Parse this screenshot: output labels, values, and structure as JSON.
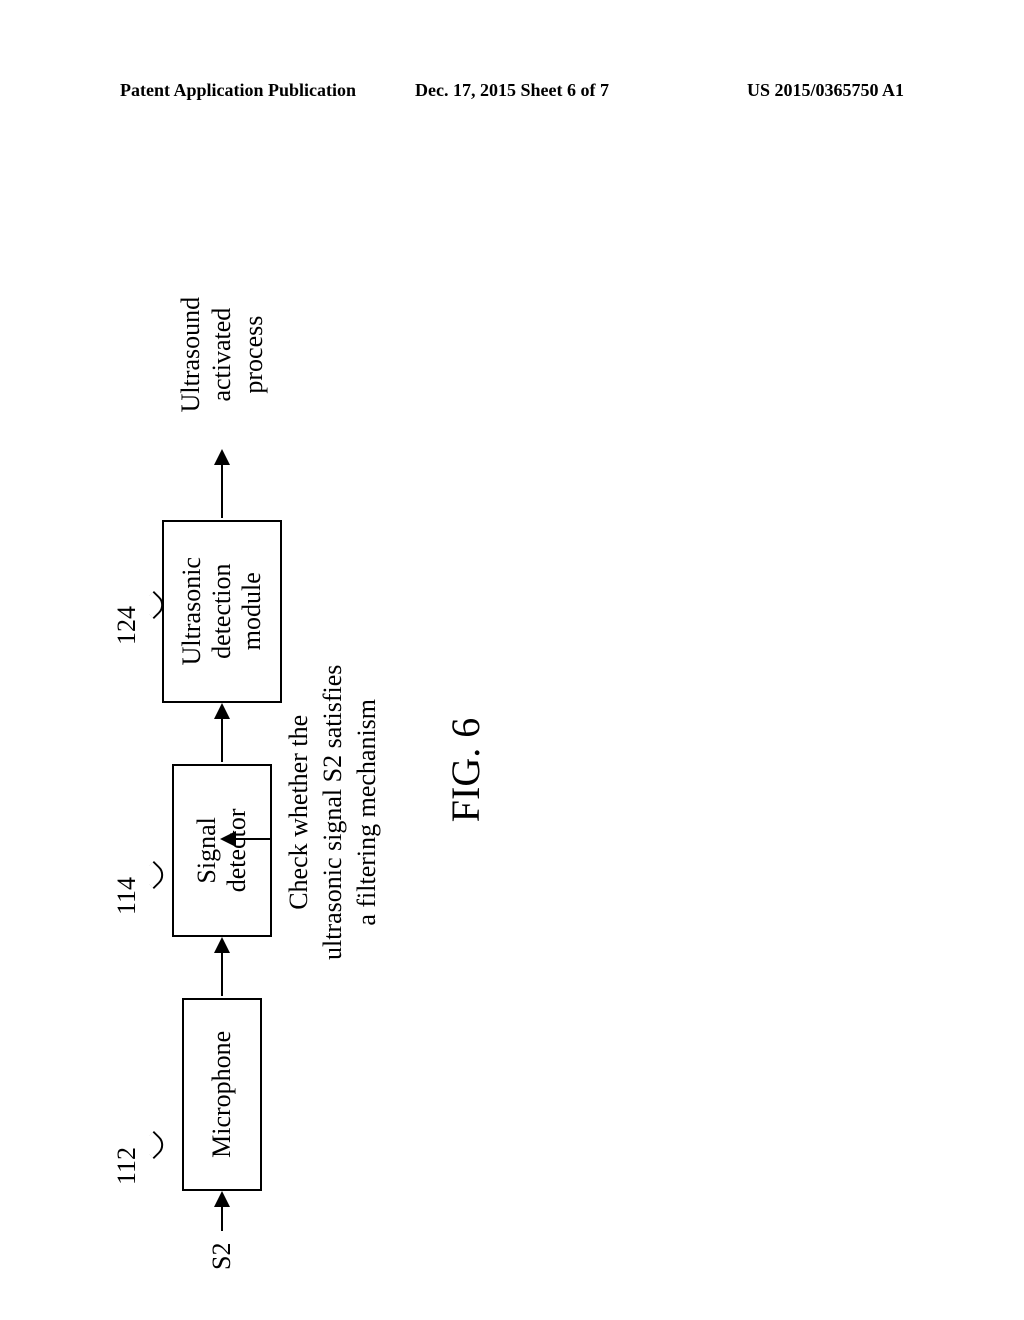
{
  "header": {
    "left": "Patent Application Publication",
    "center": "Dec. 17, 2015  Sheet 6 of 7",
    "right": "US 2015/0365750 A1"
  },
  "diagram": {
    "signal_input": "S2",
    "box1": {
      "ref": "112",
      "label": "Microphone"
    },
    "box2": {
      "ref": "114",
      "label_line1": "Signal",
      "label_line2": "detector"
    },
    "box3": {
      "ref": "124",
      "label_line1": "Ultrasonic",
      "label_line2": "detection",
      "label_line3": "module"
    },
    "output": {
      "line1": "Ultrasound",
      "line2": "activated process"
    },
    "note": {
      "line1": "Check whether the",
      "line2": "ultrasonic signal S2 satisfies",
      "line3": "a filtering mechanism"
    },
    "figure_label": "FIG. 6"
  },
  "styling": {
    "background_color": "#ffffff",
    "border_color": "#000000",
    "text_color": "#000000",
    "box_border_width": 2,
    "header_fontsize": 18,
    "diagram_fontsize": 26,
    "figure_label_fontsize": 40
  }
}
